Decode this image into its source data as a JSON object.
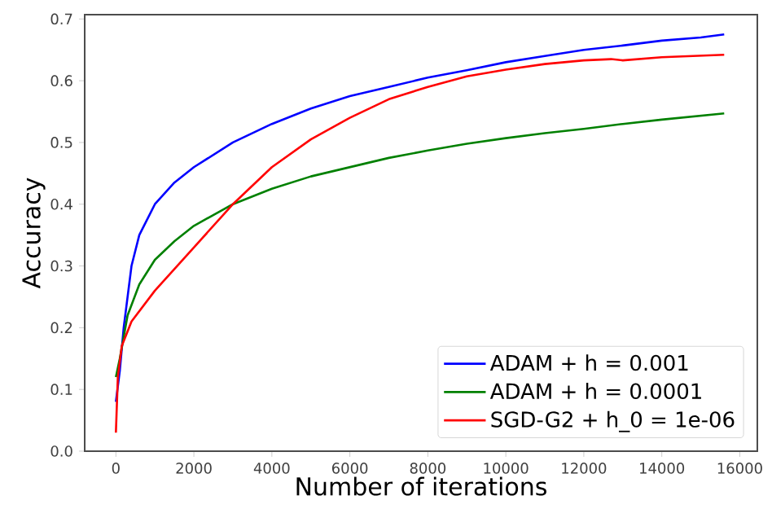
{
  "chart_data": {
    "type": "line",
    "xlabel": "Number of iterations",
    "ylabel": "Accuracy",
    "xlim": [
      -800,
      16450
    ],
    "ylim": [
      0,
      0.707
    ],
    "xticks": [
      0,
      2000,
      4000,
      6000,
      8000,
      10000,
      12000,
      14000,
      16000
    ],
    "yticks": [
      {
        "value": 0,
        "label": "0.0"
      },
      0.1,
      0.2,
      0.3,
      0.4,
      0.5,
      0.6,
      0.7
    ],
    "grid": false,
    "legend": "bottom right",
    "marker": "none",
    "line_style": "solid",
    "series": [
      {
        "name": "ADAM + h = 0.001",
        "color": "#0000ff",
        "x": [
          0,
          100,
          200,
          400,
          600,
          1000,
          1500,
          2000,
          3000,
          4000,
          5000,
          6000,
          7000,
          8000,
          9000,
          10000,
          11000,
          12000,
          13000,
          14000,
          15000,
          15600
        ],
        "values": [
          0.08,
          0.13,
          0.2,
          0.3,
          0.35,
          0.4,
          0.435,
          0.46,
          0.5,
          0.53,
          0.555,
          0.575,
          0.59,
          0.605,
          0.617,
          0.63,
          0.64,
          0.65,
          0.657,
          0.665,
          0.67,
          0.675
        ]
      },
      {
        "name": "ADAM + h = 0.0001",
        "color": "#008000",
        "x": [
          0,
          100,
          300,
          600,
          1000,
          1500,
          2000,
          3000,
          4000,
          5000,
          6000,
          7000,
          8000,
          9000,
          10000,
          11000,
          12000,
          13000,
          14000,
          15600
        ],
        "values": [
          0.12,
          0.15,
          0.22,
          0.27,
          0.31,
          0.34,
          0.365,
          0.4,
          0.425,
          0.445,
          0.46,
          0.475,
          0.487,
          0.498,
          0.507,
          0.515,
          0.522,
          0.53,
          0.537,
          0.547
        ]
      },
      {
        "name": "SGD-G2 + h_0 = 1e-06",
        "color": "#ff0000",
        "x": [
          0,
          50,
          150,
          400,
          1000,
          2000,
          3000,
          4000,
          5000,
          6000,
          7000,
          8000,
          9000,
          10000,
          11000,
          12000,
          12700,
          13000,
          14000,
          15600
        ],
        "values": [
          0.03,
          0.12,
          0.17,
          0.21,
          0.26,
          0.33,
          0.4,
          0.46,
          0.505,
          0.54,
          0.57,
          0.59,
          0.607,
          0.618,
          0.627,
          0.633,
          0.635,
          0.633,
          0.638,
          0.642
        ]
      }
    ]
  }
}
